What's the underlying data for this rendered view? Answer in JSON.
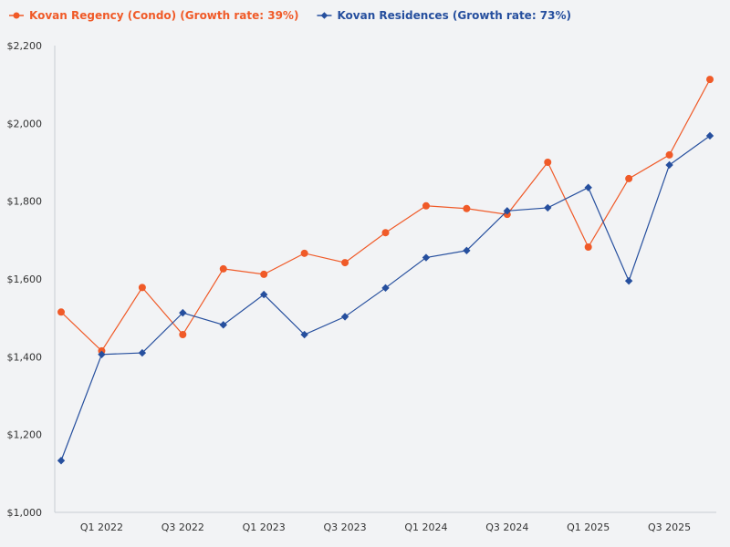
{
  "chart_data": {
    "type": "line",
    "title": "",
    "xlabel": "",
    "ylabel": "",
    "ylim": [
      1000,
      2200
    ],
    "y_ticks": [
      "$1,000",
      "$1,200",
      "$1,400",
      "$1,600",
      "$1,800",
      "$2,000",
      "$2,200"
    ],
    "y_tick_values": [
      1000,
      1200,
      1400,
      1600,
      1800,
      2000,
      2200
    ],
    "x": [
      0,
      1,
      2,
      3,
      4,
      5,
      6,
      7,
      8,
      9,
      10,
      11,
      12,
      13,
      14,
      15,
      16
    ],
    "x_tick_labels": [
      {
        "index": 1,
        "label": "Q1 2022"
      },
      {
        "index": 3,
        "label": "Q3 2022"
      },
      {
        "index": 5,
        "label": "Q1 2023"
      },
      {
        "index": 7,
        "label": "Q3 2023"
      },
      {
        "index": 9,
        "label": "Q1 2024"
      },
      {
        "index": 11,
        "label": "Q3 2024"
      },
      {
        "index": 13,
        "label": "Q1 2025"
      },
      {
        "index": 15,
        "label": "Q3 2025"
      }
    ],
    "series": [
      {
        "name": "Kovan Regency (Condo) (Growth rate: 39%)",
        "color": "#f05a28",
        "marker": "circle",
        "values": [
          1515,
          1415,
          1578,
          1457,
          1626,
          1612,
          1666,
          1642,
          1719,
          1788,
          1781,
          1766,
          1900,
          1682,
          1858,
          1919,
          2113
        ]
      },
      {
        "name": "Kovan Residences (Growth rate: 73%)",
        "color": "#264f9e",
        "marker": "diamond",
        "values": [
          1133,
          1406,
          1410,
          1513,
          1482,
          1560,
          1457,
          1503,
          1577,
          1655,
          1673,
          1775,
          1783,
          1835,
          1595,
          1893,
          1968
        ]
      }
    ],
    "grid": false,
    "legend": "top-left"
  }
}
